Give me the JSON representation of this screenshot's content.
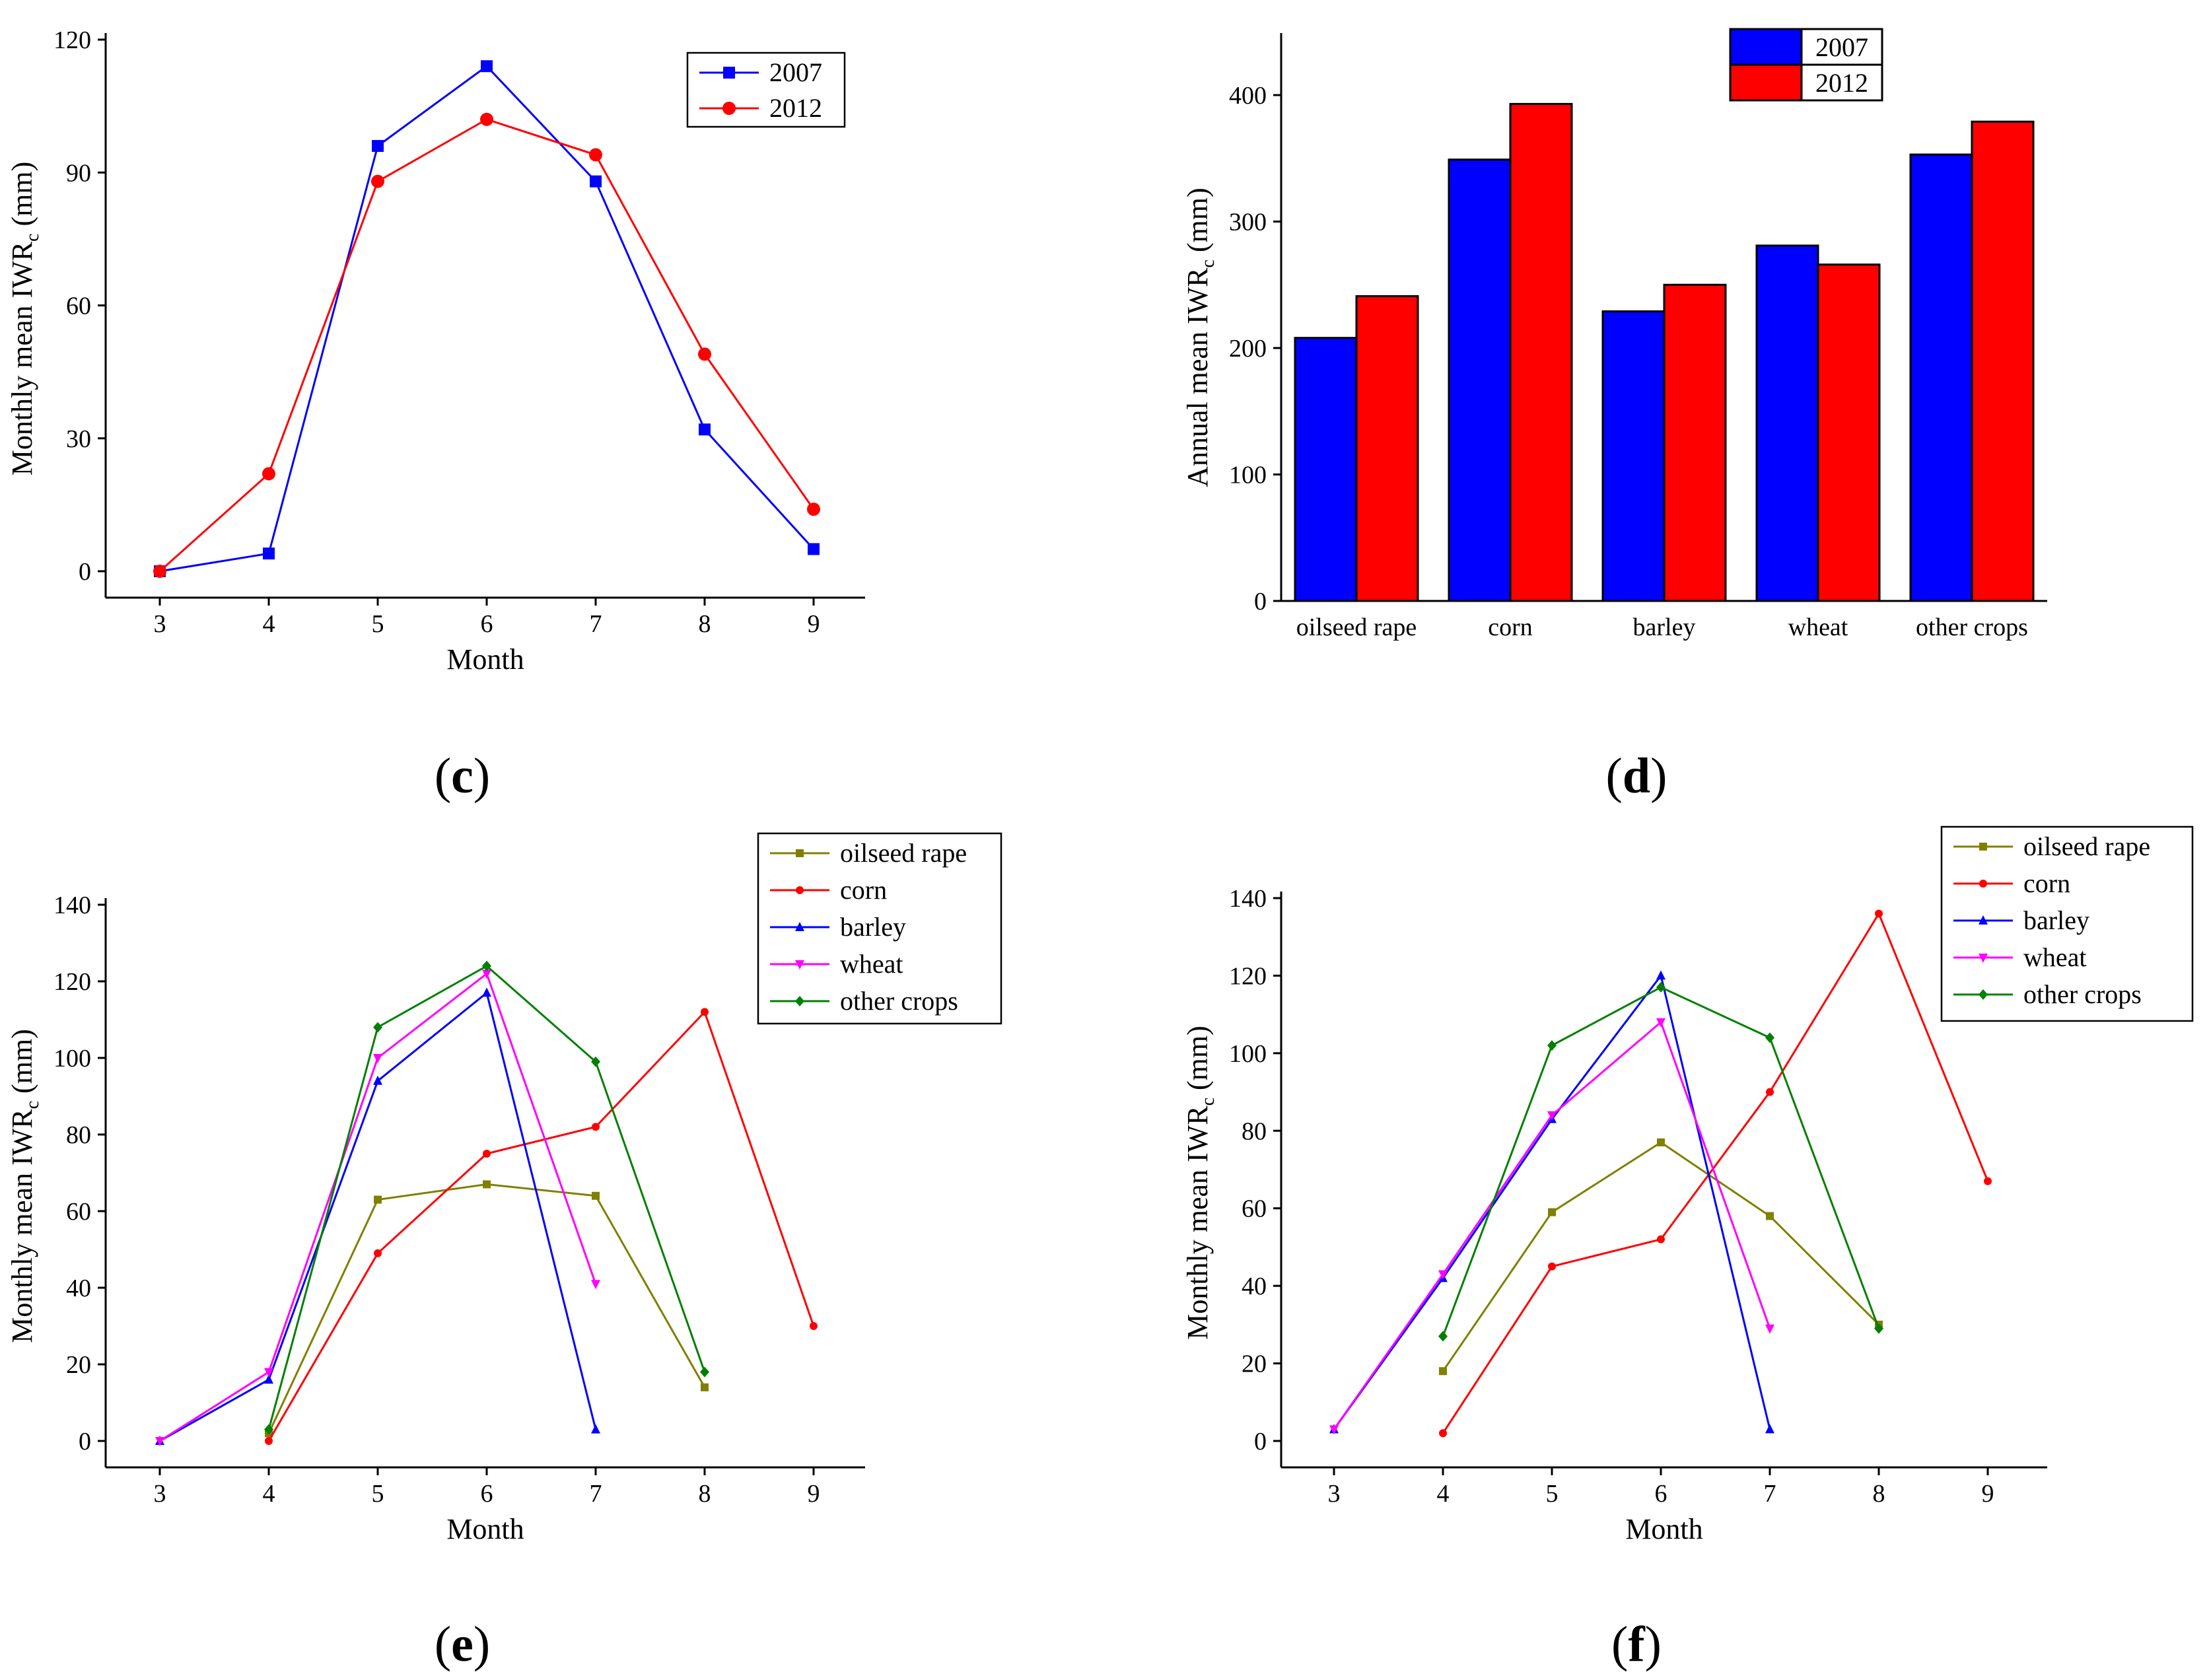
{
  "panels": [
    {
      "id": "c",
      "label_parts": [
        "(",
        "c",
        ")"
      ]
    },
    {
      "id": "d",
      "label_parts": [
        "(",
        "d",
        ")"
      ]
    },
    {
      "id": "e",
      "label_parts": [
        "(",
        "e",
        ")"
      ]
    },
    {
      "id": "f",
      "label_parts": [
        "(",
        "f",
        ")"
      ]
    }
  ],
  "colors": {
    "2007": "#0000ff",
    "2012": "#ff0000",
    "oilseed rape": "#808000",
    "corn": "#ff0000",
    "barley": "#0000ff",
    "wheat": "#ff00ff",
    "other crops": "#008000"
  },
  "chart_data": [
    {
      "panel": "c",
      "type": "line",
      "xlabel": "Month",
      "ylabel": {
        "main": "Monthly mean IWR",
        "sub": "c",
        "unit": " (mm)"
      },
      "x_ticks": [
        3,
        4,
        5,
        6,
        7,
        8,
        9
      ],
      "y_ticks": [
        0,
        30,
        60,
        90,
        120
      ],
      "xlim": [
        2.5,
        9.5
      ],
      "ylim": [
        -5,
        120
      ],
      "legend_position": "top-right",
      "series": [
        {
          "name": "2007",
          "marker": "square",
          "x": [
            3,
            4,
            5,
            6,
            7,
            8,
            9
          ],
          "values": [
            0,
            4,
            96,
            114,
            88,
            32,
            5
          ]
        },
        {
          "name": "2012",
          "marker": "circle",
          "x": [
            3,
            4,
            5,
            6,
            7,
            8,
            9
          ],
          "values": [
            0,
            22,
            88,
            102,
            94,
            49,
            14
          ]
        }
      ]
    },
    {
      "panel": "d",
      "type": "bar",
      "xlabel": "",
      "ylabel": {
        "main": "Annual mean IWR",
        "sub": "c",
        "unit": " (mm)"
      },
      "categories": [
        "oilseed rape",
        "corn",
        "barley",
        "wheat",
        "other crops"
      ],
      "y_ticks": [
        0,
        100,
        200,
        300,
        400
      ],
      "ylim": [
        0,
        450
      ],
      "legend_position": "top-center",
      "series": [
        {
          "name": "2007",
          "values": [
            208,
            349,
            229,
            281,
            353
          ]
        },
        {
          "name": "2012",
          "values": [
            241,
            393,
            250,
            266,
            379
          ]
        }
      ]
    },
    {
      "panel": "e",
      "type": "line",
      "xlabel": "Month",
      "ylabel": {
        "main": "Monthly mean IWR",
        "sub": "c",
        "unit": " (mm)"
      },
      "x_ticks": [
        3,
        4,
        5,
        6,
        7,
        8,
        9
      ],
      "y_ticks": [
        0,
        20,
        40,
        60,
        80,
        100,
        120,
        140
      ],
      "xlim": [
        2.5,
        9.5
      ],
      "ylim": [
        -5,
        140
      ],
      "legend_position": "top-right",
      "series": [
        {
          "name": "oilseed rape",
          "marker": "square",
          "x": [
            4,
            5,
            6,
            7,
            8
          ],
          "values": [
            2,
            63,
            67,
            64,
            14
          ]
        },
        {
          "name": "corn",
          "marker": "circle",
          "x": [
            4,
            5,
            6,
            7,
            8,
            9
          ],
          "values": [
            0,
            49,
            75,
            82,
            112,
            30
          ]
        },
        {
          "name": "barley",
          "marker": "triangle-up",
          "x": [
            3,
            4,
            5,
            6,
            7
          ],
          "values": [
            0,
            16,
            94,
            117,
            3
          ]
        },
        {
          "name": "wheat",
          "marker": "triangle-down",
          "x": [
            3,
            4,
            5,
            6,
            7
          ],
          "values": [
            0,
            18,
            100,
            122,
            41
          ]
        },
        {
          "name": "other crops",
          "marker": "diamond",
          "x": [
            4,
            5,
            6,
            7,
            8
          ],
          "values": [
            3,
            108,
            124,
            99,
            18
          ]
        }
      ]
    },
    {
      "panel": "f",
      "type": "line",
      "xlabel": "Month",
      "ylabel": {
        "main": "Monthly mean IWR",
        "sub": "c",
        "unit": " (mm)"
      },
      "x_ticks": [
        3,
        4,
        5,
        6,
        7,
        8,
        9
      ],
      "y_ticks": [
        0,
        20,
        40,
        60,
        80,
        100,
        120,
        140
      ],
      "xlim": [
        2.5,
        9.5
      ],
      "ylim": [
        -5,
        140
      ],
      "legend_position": "top-right",
      "series": [
        {
          "name": "oilseed rape",
          "marker": "square",
          "x": [
            4,
            5,
            6,
            7,
            8
          ],
          "values": [
            18,
            59,
            77,
            58,
            30
          ]
        },
        {
          "name": "corn",
          "marker": "circle",
          "x": [
            4,
            5,
            6,
            7,
            8,
            9
          ],
          "values": [
            2,
            45,
            52,
            90,
            136,
            67
          ]
        },
        {
          "name": "barley",
          "marker": "triangle-up",
          "x": [
            3,
            4,
            5,
            6,
            7
          ],
          "values": [
            3,
            42,
            83,
            120,
            3
          ]
        },
        {
          "name": "wheat",
          "marker": "triangle-down",
          "x": [
            3,
            4,
            5,
            6,
            7
          ],
          "values": [
            3,
            43,
            84,
            108,
            29
          ]
        },
        {
          "name": "other crops",
          "marker": "diamond",
          "x": [
            4,
            5,
            6,
            7,
            8
          ],
          "values": [
            27,
            102,
            117,
            104,
            29
          ]
        }
      ]
    }
  ]
}
